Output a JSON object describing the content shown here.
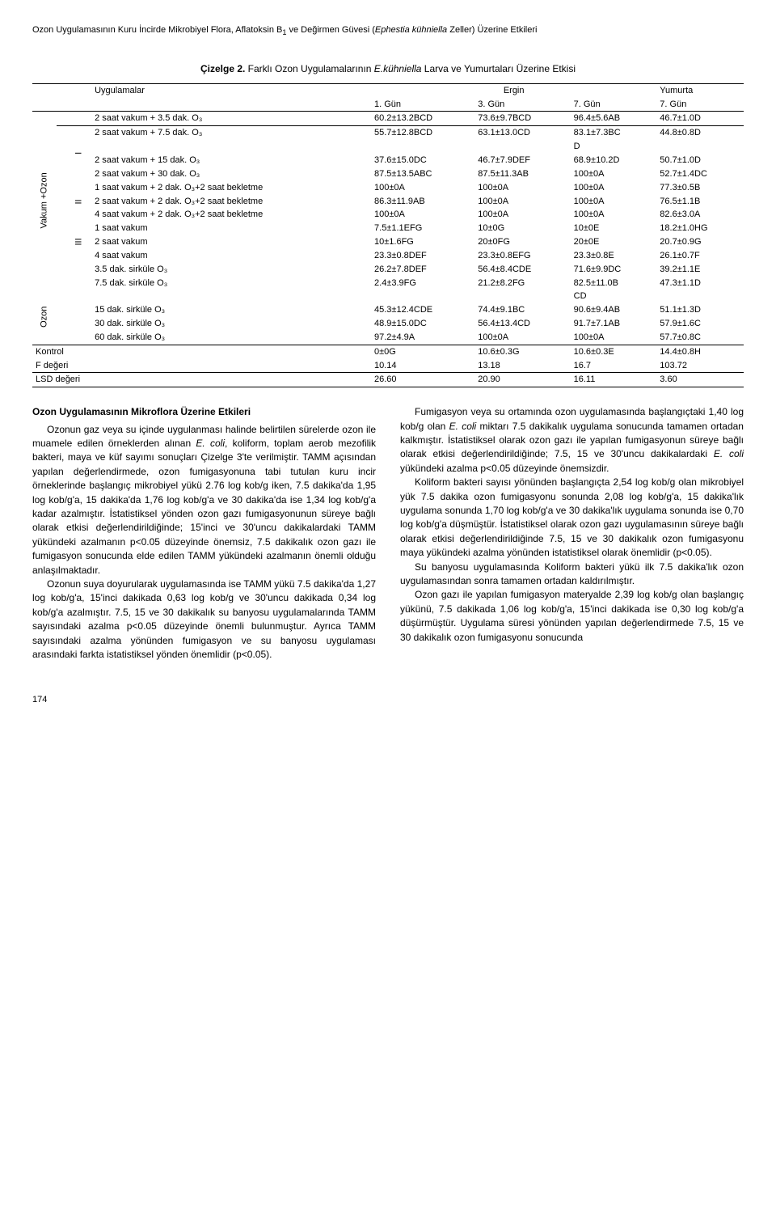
{
  "running_title_pre": "Ozon Uygulamasının Kuru İncirde Mikrobiyel Flora, Aflatoksin B",
  "running_title_sub": "1",
  "running_title_post": " ve Değirmen Güvesi (",
  "running_title_species": "Ephestia kühniella",
  "running_title_end": " Zeller) Üzerine Etkileri",
  "table_caption_pre": "Çizelge 2.",
  "table_caption_mid": " Farklı Ozon Uygulamalarının ",
  "table_caption_species": "E.kühniella",
  "table_caption_post": " Larva ve Yumurtaları Üzerine Etkisi",
  "hdr_uyg": "Uygulamalar",
  "hdr_ergin": "Ergin",
  "hdr_yumurta": "Yumurta",
  "hdr_g1": "1. Gün",
  "hdr_g3": "3. Gün",
  "hdr_g7a": "7. Gün",
  "hdr_g7b": "7. Gün",
  "side_vo": "Vakum +Ozon",
  "side_oz": "Ozon",
  "grp_I": "I",
  "grp_II": "II",
  "grp_III": "III",
  "r0": {
    "l": "2 saat vakum + 3.5 dak. O₃",
    "c1": "60.2±13.2BCD",
    "c2": "73.6±9.7BCD",
    "c3": "96.4±5.6AB",
    "c4": "46.7±1.0D"
  },
  "r1": {
    "l": "2 saat vakum + 7.5 dak. O₃",
    "c1": "55.7±12.8BCD",
    "c2": "63.1±13.0CD",
    "c3": "83.1±7.3BC",
    "c3b": "D",
    "c4": "44.8±0.8D"
  },
  "r2": {
    "l": "2 saat vakum + 15 dak. O₃",
    "c1": "37.6±15.0DC",
    "c2": "46.7±7.9DEF",
    "c3": "68.9±10.2D",
    "c4": "50.7±1.0D"
  },
  "r3": {
    "l": "2 saat vakum + 30 dak. O₃",
    "c1": "87.5±13.5ABC",
    "c2": "87.5±11.3AB",
    "c3": "100±0A",
    "c4": "52.7±1.4DC"
  },
  "r4": {
    "l": "1 saat vakum + 2 dak. O₃+2 saat bekletme",
    "c1": "100±0A",
    "c2": "100±0A",
    "c3": "100±0A",
    "c4": "77.3±0.5B"
  },
  "r5": {
    "l": "2 saat vakum + 2 dak. O₃+2 saat bekletme",
    "c1": "86.3±11.9AB",
    "c2": "100±0A",
    "c3": "100±0A",
    "c4": "76.5±1.1B"
  },
  "r6": {
    "l": "4 saat vakum + 2 dak. O₃+2 saat bekletme",
    "c1": "100±0A",
    "c2": "100±0A",
    "c3": "100±0A",
    "c4": "82.6±3.0A"
  },
  "r7": {
    "l": "1 saat vakum",
    "c1": "7.5±1.1EFG",
    "c2": "10±0G",
    "c3": "10±0E",
    "c4": "18.2±1.0HG"
  },
  "r8": {
    "l": "2 saat vakum",
    "c1": "10±1.6FG",
    "c2": "20±0FG",
    "c3": "20±0E",
    "c4": "20.7±0.9G"
  },
  "r9": {
    "l": "4 saat vakum",
    "c1": "23.3±0.8DEF",
    "c2": "23.3±0.8EFG",
    "c3": "23.3±0.8E",
    "c4": "26.1±0.7F"
  },
  "r10": {
    "l": "3.5 dak. sirküle O₃",
    "c1": "26.2±7.8DEF",
    "c2": "56.4±8.4CDE",
    "c3": "71.6±9.9DC",
    "c4": "39.2±1.1E"
  },
  "r11": {
    "l": "7.5 dak. sirküle O₃",
    "c1": "2.4±3.9FG",
    "c2": "21.2±8.2FG",
    "c3": "82.5±11.0B",
    "c3b": "CD",
    "c4": "47.3±1.1D"
  },
  "r12": {
    "l": "15 dak. sirküle O₃",
    "c1": "45.3±12.4CDE",
    "c2": "74.4±9.1BC",
    "c3": "90.6±9.4AB",
    "c4": "51.1±1.3D"
  },
  "r13": {
    "l": "30 dak. sirküle O₃",
    "c1": "48.9±15.0DC",
    "c2": "56.4±13.4CD",
    "c3": "91.7±7.1AB",
    "c4": "57.9±1.6C"
  },
  "r14": {
    "l": "60 dak. sirküle O₃",
    "c1": "97.2±4.9A",
    "c2": "100±0A",
    "c3": "100±0A",
    "c4": "57.7±0.8C"
  },
  "r_kontrol": {
    "l": "Kontrol",
    "c1": "0±0G",
    "c2": "10.6±0.3G",
    "c3": "10.6±0.3E",
    "c4": "14.4±0.8H"
  },
  "r_f": {
    "l": "F değeri",
    "c1": "10.14",
    "c2": "13.18",
    "c3": "16.7",
    "c4": "103.72"
  },
  "r_lsd": {
    "l": "LSD değeri",
    "c1": "26.60",
    "c2": "20.90",
    "c3": "16.11",
    "c4": "3.60"
  },
  "h3_left": "Ozon Uygulamasının Mikroflora Üzerine Etkileri",
  "p1a": "Ozonun gaz veya su içinde uygulanması halinde belirtilen sürelerde ozon ile muamele edilen örneklerden alınan ",
  "p1_ecoli": "E. coli",
  "p1b": ", koliform, toplam aerob mezofilik bakteri, maya ve küf sayımı sonuçları Çizelge 3'te verilmiştir. TAMM açısından yapılan değerlendirmede, ozon fumigasyonuna tabi tutulan kuru incir örneklerinde başlangıç mikrobiyel yükü 2.76 log kob/g iken, 7.5 dakika'da 1,95 log kob/g'a, 15 dakika'da 1,76 log kob/g'a ve 30 dakika'da ise 1,34 log kob/g'a kadar azalmıştır. İstatistiksel yönden ozon gazı fumigasyonunun süreye bağlı olarak etkisi değerlendirildiğinde; 15'inci ve 30'uncu dakikalardaki TAMM yükündeki azalmanın p<0.05 düzeyinde önemsiz, 7.5 dakikalık ozon gazı ile fumigasyon sonucunda elde edilen TAMM yükündeki azalmanın önemli olduğu anlaşılmaktadır.",
  "p2": "Ozonun suya doyurularak uygulamasında ise TAMM yükü 7.5 dakika'da 1,27 log kob/g'a, 15'inci dakikada 0,63 log kob/g ve 30'uncu dakikada 0,34 log kob/g'a azalmıştır. 7.5, 15 ve 30 dakikalık su banyosu uygulamalarında TAMM sayısındaki azalma p<0.05 düzeyinde önemli bulunmuştur. Ayrıca TAMM sayısındaki azalma yönünden fumigasyon ve su banyosu uygulaması arasındaki farkta istatistiksel yönden önemlidir (p<0.05).",
  "p3a": "Fumigasyon veya su ortamında ozon uygulamasında başlangıçtaki 1,40 log kob/g olan ",
  "p3_ecoli": "E. coli",
  "p3b": " miktarı 7.5 dakikalık uygulama sonucunda tamamen ortadan kalkmıştır. İstatistiksel olarak ozon gazı ile yapılan fumigasyonun süreye bağlı olarak etkisi değerlendirildiğinde; 7.5, 15 ve 30'uncu dakikalardaki ",
  "p3_ecoli2": "E. coli",
  "p3c": " yükündeki azalma p<0.05 düzeyinde önemsizdir.",
  "p4": "Koliform bakteri sayısı yönünden başlangıçta 2,54 log kob/g olan mikrobiyel yük 7.5 dakika ozon fumigasyonu sonunda 2,08 log kob/g'a, 15 dakika'lık uygulama sonunda 1,70 log kob/g'a ve 30 dakika'lık uygulama sonunda ise 0,70 log kob/g'a düşmüştür. İstatistiksel olarak ozon gazı uygulamasının süreye bağlı olarak etkisi değerlendirildiğinde 7.5, 15 ve 30 dakikalık ozon fumigasyonu maya yükündeki azalma yönünden istatistiksel olarak önemlidir (p<0.05).",
  "p5": "Su banyosu uygulamasında Koliform bakteri yükü ilk 7.5 dakika'lık ozon uygulamasından sonra tamamen ortadan kaldırılmıştır.",
  "p6": "Ozon gazı ile yapılan fumigasyon materyalde 2,39 log kob/g olan başlangıç yükünü, 7.5 dakikada 1,06 log kob/g'a, 15'inci dakikada ise 0,30 log kob/g'a düşürmüştür. Uygulama süresi yönünden yapılan değerlendirmede 7.5, 15 ve 30 dakikalık ozon fumigasyonu sonucunda",
  "pagenum": "174"
}
